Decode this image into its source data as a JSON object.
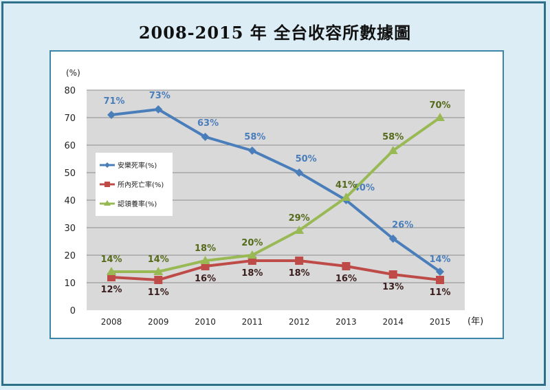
{
  "chart_data": {
    "type": "line",
    "title": "2008-2015 年  全台收容所數據圖",
    "ylabel": "(%)",
    "xlabel": "(年)",
    "ylim": [
      0,
      80
    ],
    "yticks": [
      0,
      10,
      20,
      30,
      40,
      50,
      60,
      70,
      80
    ],
    "categories": [
      "2008",
      "2009",
      "2010",
      "2011",
      "2012",
      "2013",
      "2014",
      "2015"
    ],
    "grid": true,
    "legend_placement": "left",
    "series": [
      {
        "name": "安樂死率(%)",
        "color": "#4a7ebb",
        "marker": "diamond",
        "values": [
          71,
          73,
          63,
          58,
          50,
          40,
          26,
          14
        ],
        "labels": [
          "71%",
          "73%",
          "63%",
          "58%",
          "50%",
          "40%",
          "26%",
          "14%"
        ]
      },
      {
        "name": "所內死亡率(%)",
        "color": "#be4b48",
        "marker": "square",
        "values": [
          12,
          11,
          16,
          18,
          18,
          16,
          13,
          11
        ],
        "labels": [
          "12%",
          "11%",
          "16%",
          "18%",
          "18%",
          "16%",
          "13%",
          "11%"
        ]
      },
      {
        "name": "認領養率(%)",
        "color": "#98b954",
        "marker": "triangle",
        "values": [
          14,
          14,
          18,
          20,
          29,
          41,
          58,
          70
        ],
        "labels": [
          "14%",
          "14%",
          "18%",
          "20%",
          "29%",
          "41%",
          "58%",
          "70%"
        ]
      }
    ]
  }
}
